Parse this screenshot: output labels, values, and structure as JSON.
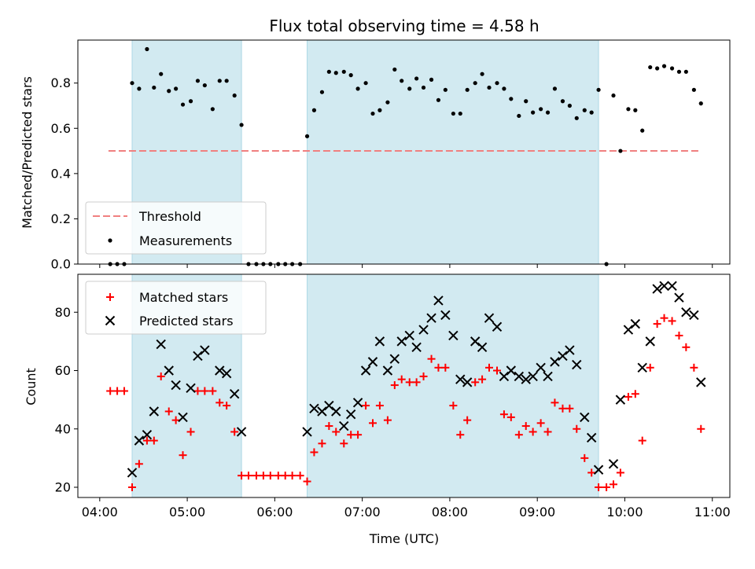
{
  "chart_data": [
    {
      "type": "scatter",
      "title": "Flux total observing time = 4.58 h",
      "ylabel": "Matched/Predicted stars",
      "ylim": [
        0,
        0.99
      ],
      "yticks": [
        "0.0",
        "0.2",
        "0.4",
        "0.6",
        "0.8"
      ],
      "xlim": [
        3.75,
        11.2
      ],
      "grid": false,
      "legend_position": "lower-left",
      "shaded_intervals": [
        [
          4.37,
          5.62
        ],
        [
          6.37,
          9.7
        ]
      ],
      "shade_color": "#add8e6",
      "threshold": {
        "name": "Threshold",
        "y": 0.5,
        "x_range": [
          4.1,
          10.87
        ],
        "color": "#f08080"
      },
      "series": [
        {
          "name": "Measurements",
          "color": "#000000",
          "points": [
            [
              4.12,
              0.0
            ],
            [
              4.2,
              0.0
            ],
            [
              4.28,
              0.0
            ],
            [
              4.37,
              0.8
            ],
            [
              4.45,
              0.775
            ],
            [
              4.54,
              0.95
            ],
            [
              4.62,
              0.78
            ],
            [
              4.7,
              0.84
            ],
            [
              4.79,
              0.765
            ],
            [
              4.87,
              0.775
            ],
            [
              4.95,
              0.705
            ],
            [
              5.04,
              0.72
            ],
            [
              5.12,
              0.81
            ],
            [
              5.2,
              0.79
            ],
            [
              5.29,
              0.685
            ],
            [
              5.37,
              0.81
            ],
            [
              5.45,
              0.81
            ],
            [
              5.54,
              0.745
            ],
            [
              5.62,
              0.615
            ],
            [
              5.7,
              0.0
            ],
            [
              5.79,
              0.0
            ],
            [
              5.87,
              0.0
            ],
            [
              5.95,
              0.0
            ],
            [
              6.04,
              0.0
            ],
            [
              6.12,
              0.0
            ],
            [
              6.2,
              0.0
            ],
            [
              6.29,
              0.0
            ],
            [
              6.37,
              0.565
            ],
            [
              6.45,
              0.68
            ],
            [
              6.54,
              0.76
            ],
            [
              6.62,
              0.85
            ],
            [
              6.7,
              0.845
            ],
            [
              6.79,
              0.85
            ],
            [
              6.87,
              0.835
            ],
            [
              6.95,
              0.775
            ],
            [
              7.04,
              0.8
            ],
            [
              7.12,
              0.665
            ],
            [
              7.2,
              0.68
            ],
            [
              7.29,
              0.715
            ],
            [
              7.37,
              0.86
            ],
            [
              7.45,
              0.81
            ],
            [
              7.54,
              0.775
            ],
            [
              7.62,
              0.82
            ],
            [
              7.7,
              0.78
            ],
            [
              7.79,
              0.815
            ],
            [
              7.87,
              0.725
            ],
            [
              7.95,
              0.77
            ],
            [
              8.04,
              0.665
            ],
            [
              8.12,
              0.665
            ],
            [
              8.2,
              0.77
            ],
            [
              8.29,
              0.8
            ],
            [
              8.37,
              0.84
            ],
            [
              8.45,
              0.78
            ],
            [
              8.54,
              0.8
            ],
            [
              8.62,
              0.775
            ],
            [
              8.7,
              0.73
            ],
            [
              8.79,
              0.655
            ],
            [
              8.87,
              0.72
            ],
            [
              8.95,
              0.67
            ],
            [
              9.04,
              0.685
            ],
            [
              9.12,
              0.67
            ],
            [
              9.2,
              0.775
            ],
            [
              9.29,
              0.72
            ],
            [
              9.37,
              0.7
            ],
            [
              9.45,
              0.645
            ],
            [
              9.54,
              0.68
            ],
            [
              9.62,
              0.67
            ],
            [
              9.7,
              0.77
            ],
            [
              9.79,
              0.0
            ],
            [
              9.87,
              0.745
            ],
            [
              9.95,
              0.5
            ],
            [
              10.04,
              0.685
            ],
            [
              10.12,
              0.68
            ],
            [
              10.2,
              0.59
            ],
            [
              10.29,
              0.87
            ],
            [
              10.37,
              0.865
            ],
            [
              10.45,
              0.875
            ],
            [
              10.54,
              0.865
            ],
            [
              10.62,
              0.85
            ],
            [
              10.7,
              0.85
            ],
            [
              10.79,
              0.77
            ],
            [
              10.87,
              0.71
            ]
          ]
        }
      ]
    },
    {
      "type": "scatter",
      "xlabel": "Time (UTC)",
      "ylabel": "Count",
      "ylim": [
        16.5,
        93
      ],
      "yticks": [
        "20",
        "40",
        "60",
        "80"
      ],
      "xlim": [
        3.75,
        11.2
      ],
      "xticks": [
        "04:00",
        "05:00",
        "06:00",
        "07:00",
        "08:00",
        "09:00",
        "10:00",
        "11:00"
      ],
      "grid": false,
      "legend_position": "upper-left",
      "shaded_intervals": [
        [
          4.37,
          5.62
        ],
        [
          6.37,
          9.7
        ]
      ],
      "shade_color": "#add8e6",
      "series": [
        {
          "name": "Matched stars",
          "marker": "plus",
          "color": "#ff0000",
          "points": [
            [
              4.12,
              53
            ],
            [
              4.2,
              53
            ],
            [
              4.28,
              53
            ],
            [
              4.37,
              20
            ],
            [
              4.45,
              28
            ],
            [
              4.54,
              36
            ],
            [
              4.62,
              36
            ],
            [
              4.7,
              58
            ],
            [
              4.79,
              46
            ],
            [
              4.87,
              43
            ],
            [
              4.95,
              31
            ],
            [
              5.04,
              39
            ],
            [
              5.12,
              53
            ],
            [
              5.2,
              53
            ],
            [
              5.29,
              53
            ],
            [
              5.37,
              49
            ],
            [
              5.45,
              48
            ],
            [
              5.54,
              39
            ],
            [
              5.62,
              24
            ],
            [
              5.7,
              24
            ],
            [
              5.79,
              24
            ],
            [
              5.87,
              24
            ],
            [
              5.95,
              24
            ],
            [
              6.04,
              24
            ],
            [
              6.12,
              24
            ],
            [
              6.2,
              24
            ],
            [
              6.29,
              24
            ],
            [
              6.37,
              22
            ],
            [
              6.45,
              32
            ],
            [
              6.54,
              35
            ],
            [
              6.62,
              41
            ],
            [
              6.7,
              39
            ],
            [
              6.79,
              35
            ],
            [
              6.87,
              38
            ],
            [
              6.95,
              38
            ],
            [
              7.04,
              48
            ],
            [
              7.12,
              42
            ],
            [
              7.2,
              48
            ],
            [
              7.29,
              43
            ],
            [
              7.37,
              55
            ],
            [
              7.45,
              57
            ],
            [
              7.54,
              56
            ],
            [
              7.62,
              56
            ],
            [
              7.7,
              58
            ],
            [
              7.79,
              64
            ],
            [
              7.87,
              61
            ],
            [
              7.95,
              61
            ],
            [
              8.04,
              48
            ],
            [
              8.12,
              38
            ],
            [
              8.2,
              43
            ],
            [
              8.29,
              56
            ],
            [
              8.37,
              57
            ],
            [
              8.45,
              61
            ],
            [
              8.54,
              60
            ],
            [
              8.62,
              45
            ],
            [
              8.7,
              44
            ],
            [
              8.79,
              38
            ],
            [
              8.87,
              41
            ],
            [
              8.95,
              39
            ],
            [
              9.04,
              42
            ],
            [
              9.12,
              39
            ],
            [
              9.2,
              49
            ],
            [
              9.29,
              47
            ],
            [
              9.37,
              47
            ],
            [
              9.45,
              40
            ],
            [
              9.54,
              30
            ],
            [
              9.62,
              25
            ],
            [
              9.7,
              20
            ],
            [
              9.79,
              20
            ],
            [
              9.87,
              21
            ],
            [
              9.95,
              25
            ],
            [
              10.04,
              51
            ],
            [
              10.12,
              52
            ],
            [
              10.2,
              36
            ],
            [
              10.29,
              61
            ],
            [
              10.37,
              76
            ],
            [
              10.45,
              78
            ],
            [
              10.54,
              77
            ],
            [
              10.62,
              72
            ],
            [
              10.7,
              68
            ],
            [
              10.79,
              61
            ],
            [
              10.87,
              40
            ]
          ]
        },
        {
          "name": "Predicted stars",
          "marker": "x",
          "color": "#000000",
          "points": [
            [
              4.37,
              25
            ],
            [
              4.45,
              36
            ],
            [
              4.54,
              38
            ],
            [
              4.62,
              46
            ],
            [
              4.7,
              69
            ],
            [
              4.79,
              60
            ],
            [
              4.87,
              55
            ],
            [
              4.95,
              44
            ],
            [
              5.04,
              54
            ],
            [
              5.12,
              65
            ],
            [
              5.2,
              67
            ],
            [
              5.37,
              60
            ],
            [
              5.45,
              59
            ],
            [
              5.54,
              52
            ],
            [
              5.62,
              39
            ],
            [
              6.37,
              39
            ],
            [
              6.45,
              47
            ],
            [
              6.54,
              46
            ],
            [
              6.62,
              48
            ],
            [
              6.7,
              46
            ],
            [
              6.79,
              41
            ],
            [
              6.87,
              45
            ],
            [
              6.95,
              49
            ],
            [
              7.04,
              60
            ],
            [
              7.12,
              63
            ],
            [
              7.2,
              70
            ],
            [
              7.29,
              60
            ],
            [
              7.37,
              64
            ],
            [
              7.45,
              70
            ],
            [
              7.54,
              72
            ],
            [
              7.62,
              68
            ],
            [
              7.7,
              74
            ],
            [
              7.79,
              78
            ],
            [
              7.87,
              84
            ],
            [
              7.95,
              79
            ],
            [
              8.04,
              72
            ],
            [
              8.12,
              57
            ],
            [
              8.2,
              56
            ],
            [
              8.29,
              70
            ],
            [
              8.37,
              68
            ],
            [
              8.45,
              78
            ],
            [
              8.54,
              75
            ],
            [
              8.62,
              58
            ],
            [
              8.7,
              60
            ],
            [
              8.79,
              58
            ],
            [
              8.87,
              57
            ],
            [
              8.95,
              58
            ],
            [
              9.04,
              61
            ],
            [
              9.12,
              58
            ],
            [
              9.2,
              63
            ],
            [
              9.29,
              65
            ],
            [
              9.37,
              67
            ],
            [
              9.45,
              62
            ],
            [
              9.54,
              44
            ],
            [
              9.62,
              37
            ],
            [
              9.7,
              26
            ],
            [
              9.87,
              28
            ],
            [
              9.95,
              50
            ],
            [
              10.04,
              74
            ],
            [
              10.12,
              76
            ],
            [
              10.2,
              61
            ],
            [
              10.29,
              70
            ],
            [
              10.37,
              88
            ],
            [
              10.45,
              89
            ],
            [
              10.54,
              89
            ],
            [
              10.62,
              85
            ],
            [
              10.7,
              80
            ],
            [
              10.79,
              79
            ],
            [
              10.87,
              56
            ]
          ]
        }
      ]
    }
  ]
}
